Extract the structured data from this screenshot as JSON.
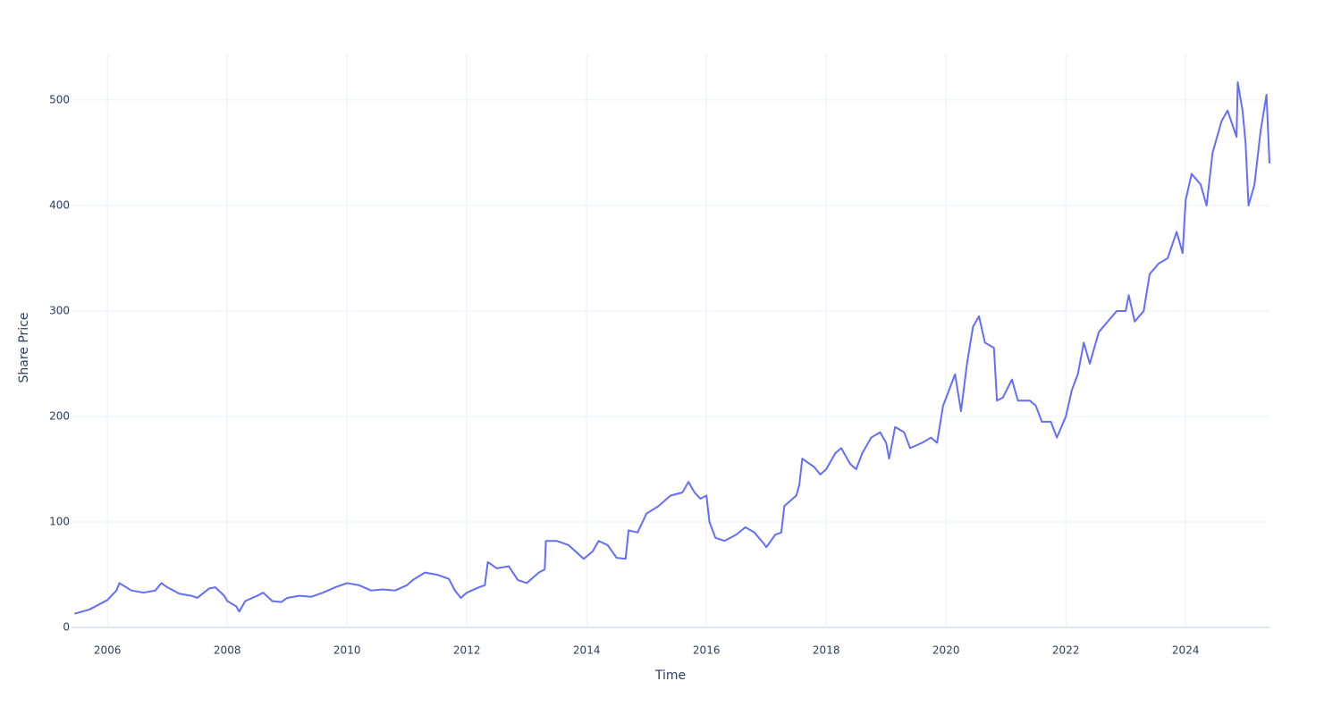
{
  "chart_data": {
    "type": "line",
    "xlabel": "Time",
    "ylabel": "Share Price",
    "color": "#636efa",
    "grid": true,
    "xlim": [
      2005.4,
      2025.4
    ],
    "xticks": [
      2006,
      2008,
      2010,
      2012,
      2014,
      2016,
      2018,
      2020,
      2022,
      2024
    ],
    "ylim": [
      0,
      544
    ],
    "yticks": [
      0,
      100,
      200,
      300,
      400,
      500
    ],
    "x": [
      2005.45,
      2005.7,
      2006.0,
      2006.15,
      2006.2,
      2006.4,
      2006.6,
      2006.8,
      2006.9,
      2007.0,
      2007.2,
      2007.4,
      2007.5,
      2007.7,
      2007.8,
      2007.95,
      2008.0,
      2008.15,
      2008.2,
      2008.3,
      2008.5,
      2008.6,
      2008.75,
      2008.9,
      2009.0,
      2009.2,
      2009.4,
      2009.6,
      2009.8,
      2010.0,
      2010.2,
      2010.4,
      2010.6,
      2010.8,
      2011.0,
      2011.1,
      2011.3,
      2011.5,
      2011.7,
      2011.8,
      2011.9,
      2012.0,
      2012.2,
      2012.3,
      2012.35,
      2012.5,
      2012.7,
      2012.85,
      2013.0,
      2013.2,
      2013.3,
      2013.32,
      2013.5,
      2013.7,
      2013.95,
      2014.1,
      2014.2,
      2014.35,
      2014.5,
      2014.65,
      2014.7,
      2014.85,
      2015.0,
      2015.2,
      2015.4,
      2015.6,
      2015.7,
      2015.8,
      2015.9,
      2016.0,
      2016.05,
      2016.15,
      2016.3,
      2016.5,
      2016.65,
      2016.8,
      2016.95,
      2017.0,
      2017.15,
      2017.25,
      2017.3,
      2017.5,
      2017.55,
      2017.6,
      2017.8,
      2017.9,
      2018.0,
      2018.15,
      2018.25,
      2018.4,
      2018.5,
      2018.6,
      2018.75,
      2018.9,
      2019.0,
      2019.05,
      2019.15,
      2019.3,
      2019.4,
      2019.6,
      2019.75,
      2019.85,
      2019.95,
      2020.05,
      2020.15,
      2020.25,
      2020.35,
      2020.45,
      2020.55,
      2020.65,
      2020.8,
      2020.85,
      2020.95,
      2021.1,
      2021.2,
      2021.4,
      2021.5,
      2021.6,
      2021.75,
      2021.85,
      2022.0,
      2022.1,
      2022.2,
      2022.3,
      2022.4,
      2022.55,
      2022.7,
      2022.85,
      2023.0,
      2023.05,
      2023.15,
      2023.3,
      2023.4,
      2023.55,
      2023.7,
      2023.85,
      2023.95,
      2024.0,
      2024.1,
      2024.25,
      2024.35,
      2024.45,
      2024.6,
      2024.7,
      2024.85,
      2024.87,
      2024.95,
      2025.0,
      2025.05,
      2025.15,
      2025.25,
      2025.35,
      2025.4
    ],
    "values": [
      13,
      17,
      26,
      35,
      42,
      35,
      33,
      35,
      42,
      38,
      32,
      30,
      28,
      37,
      38,
      30,
      25,
      20,
      15,
      25,
      30,
      33,
      25,
      24,
      28,
      30,
      29,
      33,
      38,
      42,
      40,
      35,
      36,
      35,
      40,
      45,
      52,
      50,
      46,
      35,
      28,
      33,
      38,
      40,
      62,
      56,
      58,
      45,
      42,
      52,
      55,
      82,
      82,
      78,
      65,
      72,
      82,
      78,
      66,
      65,
      92,
      90,
      108,
      115,
      125,
      128,
      138,
      128,
      122,
      125,
      100,
      85,
      82,
      88,
      95,
      90,
      80,
      76,
      88,
      90,
      115,
      125,
      135,
      160,
      152,
      145,
      150,
      165,
      170,
      155,
      150,
      165,
      180,
      185,
      175,
      160,
      190,
      185,
      170,
      175,
      180,
      175,
      210,
      225,
      240,
      205,
      250,
      285,
      295,
      270,
      265,
      215,
      218,
      235,
      215,
      215,
      210,
      195,
      195,
      180,
      200,
      225,
      240,
      270,
      250,
      280,
      290,
      300,
      300,
      315,
      290,
      300,
      335,
      345,
      350,
      375,
      355,
      405,
      430,
      420,
      400,
      450,
      480,
      490,
      465,
      517,
      490,
      460,
      400,
      420,
      470,
      505,
      440
    ]
  }
}
